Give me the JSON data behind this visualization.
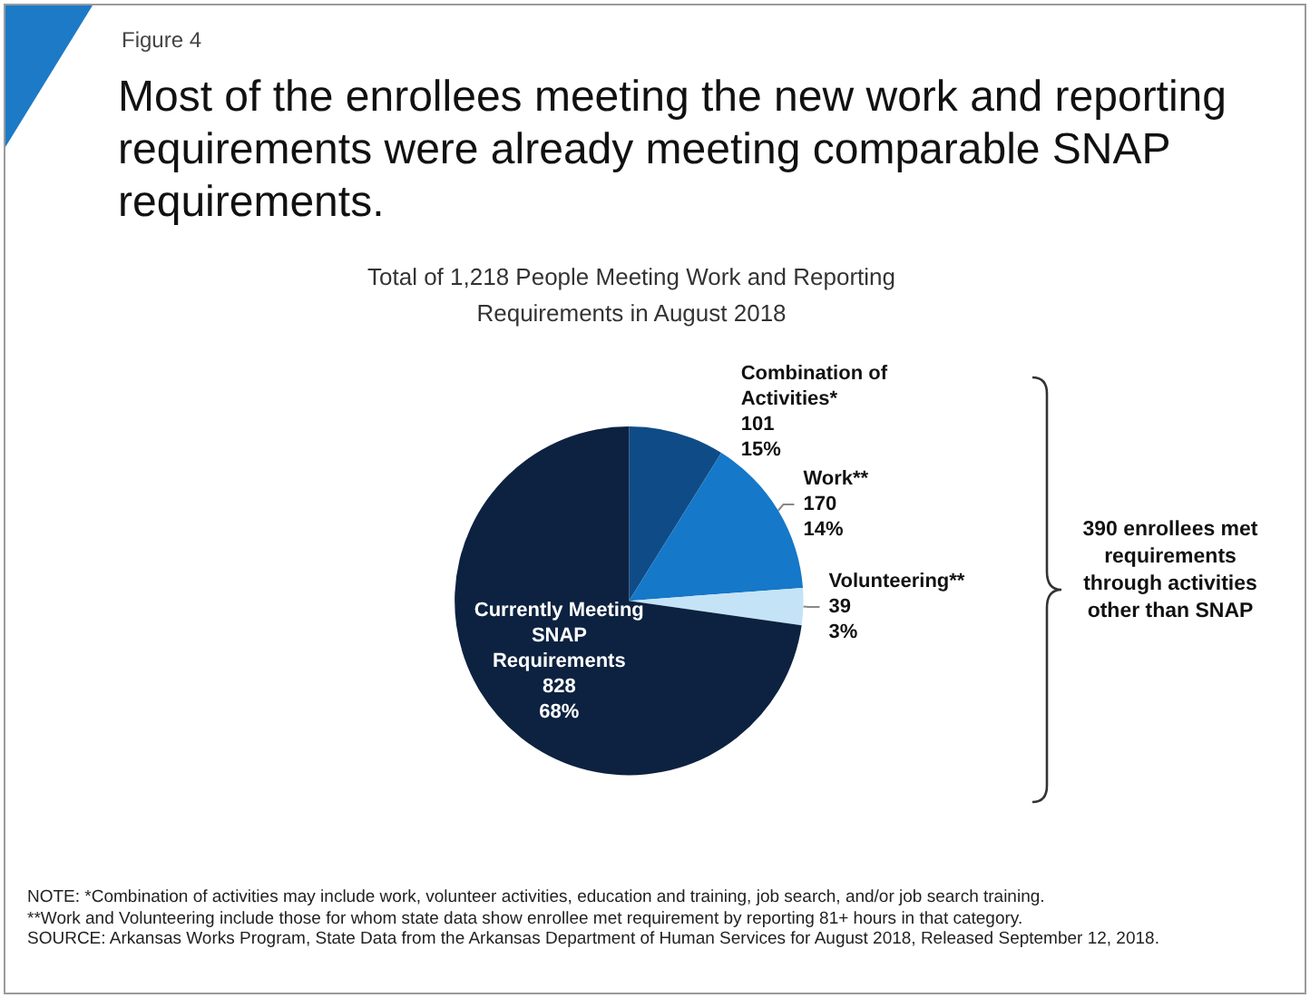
{
  "chart_data": {
    "type": "pie",
    "title": "Most of the enrollees meeting the new work and reporting requirements were already meeting comparable SNAP requirements.",
    "subtitle": "Total of 1,218 People Meeting Work and Reporting Requirements in August 2018",
    "categories": [
      "Combination of Activities*",
      "Work**",
      "Volunteering**",
      "Currently Meeting SNAP Requirements"
    ],
    "values": [
      101,
      170,
      39,
      828
    ],
    "value_labels": [
      "101\n15%",
      "170\n14%",
      "39\n3%",
      "828\n68%"
    ],
    "colors": [
      "#0f4c87",
      "#1578c8",
      "#c5e3f7",
      "#0c2240"
    ],
    "legend": false,
    "annotations": [
      "Figure 4",
      "390 enrollees met requirements through activities other than SNAP",
      "NOTE:  *Combination of activities may include work, volunteer activities, education and training, job search, and/or job search training.",
      "**Work and Volunteering include those for whom state data show enrollee met requirement by reporting 81+ hours in that category.",
      "SOURCE:  Arkansas Works Program, State Data from the Arkansas Department of Human Services for August 2018, Released September 12, 2018."
    ]
  }
}
